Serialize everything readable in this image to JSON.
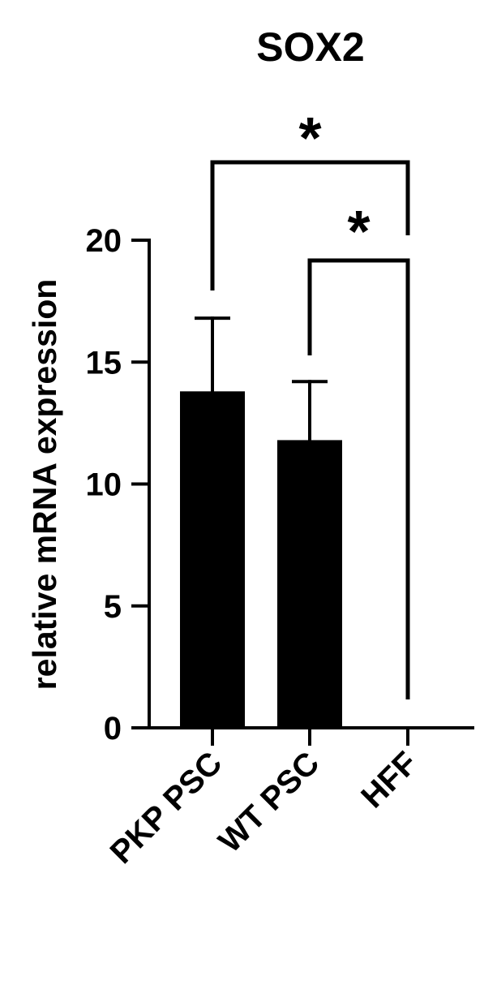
{
  "chart_data": {
    "type": "bar",
    "title": "SOX2",
    "xlabel": "",
    "ylabel": "relative mRNA expression",
    "categories": [
      "PKP PSC",
      "WT PSC",
      "HFF"
    ],
    "values": [
      13.8,
      11.8,
      0.05
    ],
    "errors": [
      3.0,
      2.4,
      0.0
    ],
    "ylim": [
      0,
      20
    ],
    "yticks": [
      0,
      5,
      10,
      15,
      20
    ],
    "grid": false,
    "legend": "none",
    "bar_color": "#000000",
    "significance": [
      {
        "from": 0,
        "to": 2,
        "label": "*"
      },
      {
        "from": 1,
        "to": 2,
        "label": "*"
      }
    ]
  }
}
